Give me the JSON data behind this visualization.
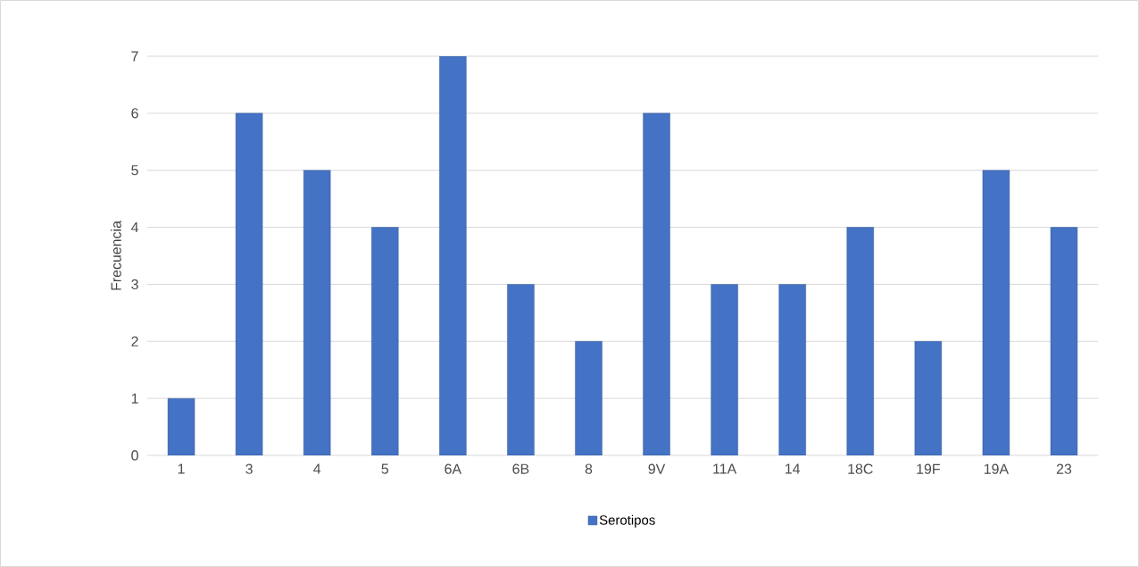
{
  "chart_data": {
    "type": "bar",
    "ylabel": "Frecuencia",
    "categories": [
      "1",
      "3",
      "4",
      "5",
      "6A",
      "6B",
      "8",
      "9V",
      "11A",
      "14",
      "18C",
      "19F",
      "19A",
      "23"
    ],
    "series": [
      {
        "name": "Serotipos",
        "color": "#4472c4",
        "values": [
          1,
          6,
          5,
          4,
          7,
          3,
          2,
          6,
          3,
          3,
          4,
          2,
          5,
          4
        ]
      }
    ],
    "ylim": [
      0,
      7
    ],
    "yticks": [
      0,
      1,
      2,
      3,
      4,
      5,
      6,
      7
    ],
    "grid": "y",
    "legend": "bottom"
  }
}
